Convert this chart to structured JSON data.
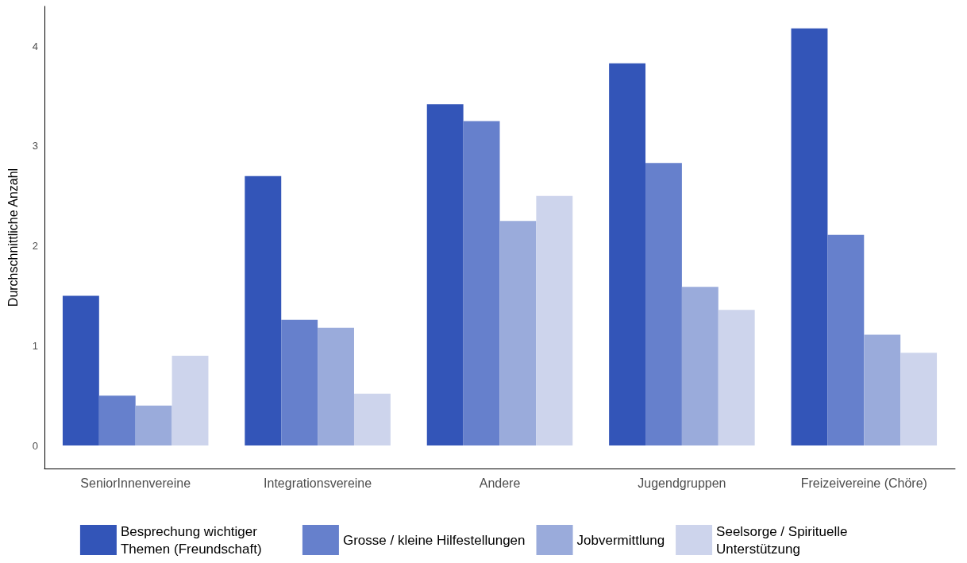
{
  "chart_data": {
    "type": "bar",
    "ylabel": "Durchschnittliche Anzahl",
    "categories": [
      "SeniorInnenvereine",
      "Integrationsvereine",
      "Andere",
      "Jugendgruppen",
      "Freizeivereine (Chöre)"
    ],
    "series": [
      {
        "name": "Besprechung wichtiger Themen (Freundschaft)",
        "color": "#3355b8",
        "values": [
          1.5,
          2.7,
          3.42,
          3.83,
          4.18
        ]
      },
      {
        "name": "Grosse / kleine Hilfestellungen",
        "color": "#6680cc",
        "values": [
          0.5,
          1.26,
          3.25,
          2.83,
          2.11
        ]
      },
      {
        "name": "Jobvermittlung",
        "color": "#9aabdb",
        "values": [
          0.4,
          1.18,
          2.25,
          1.59,
          1.11
        ]
      },
      {
        "name": "Seelsorge / Spirituelle Unterstützung",
        "color": "#cdd4ec",
        "values": [
          0.9,
          0.52,
          2.5,
          1.36,
          0.93
        ]
      }
    ],
    "ylim": [
      -0.23,
      4.4
    ],
    "yticks": [
      0,
      1,
      2,
      3,
      4
    ],
    "grid": false,
    "legend": "bottom"
  }
}
